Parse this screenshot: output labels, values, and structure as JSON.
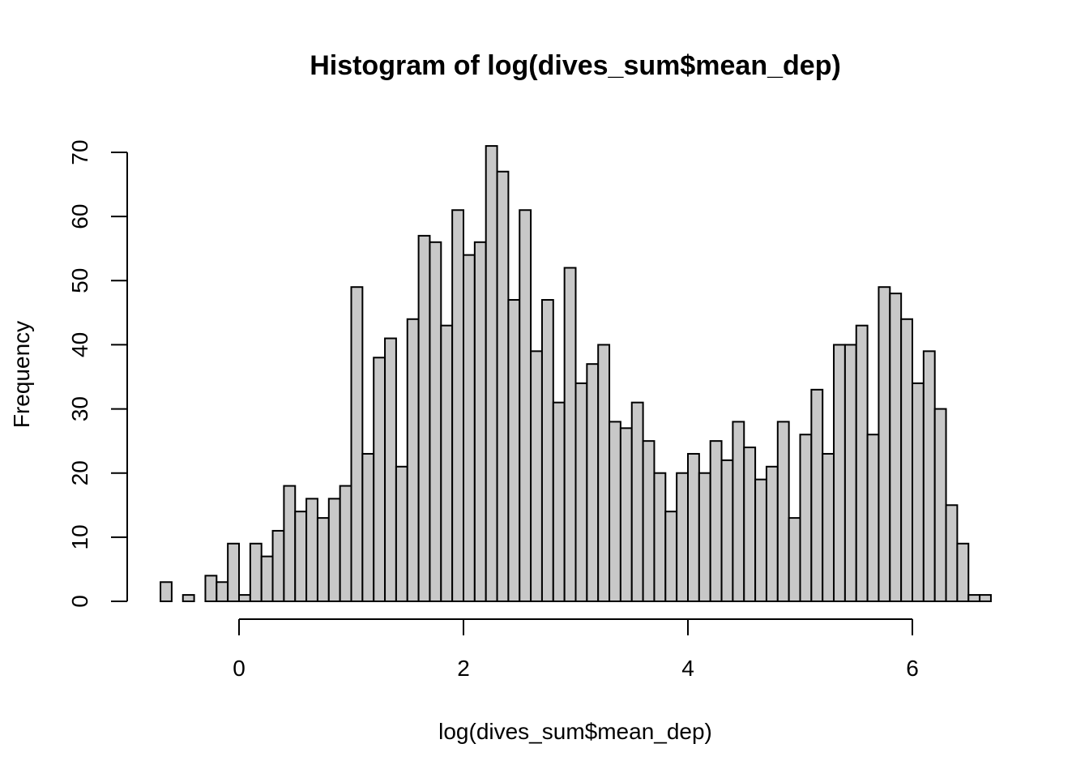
{
  "chart_data": {
    "type": "bar",
    "title": "Histogram of log(dives_sum$mean_dep)",
    "xlabel": "log(dives_sum$mean_dep)",
    "ylabel": "Frequency",
    "bar_color": "#c8c8c8",
    "edge_color": "#000000",
    "bin_start": -0.7,
    "bin_width": 0.1,
    "values": [
      3,
      0,
      1,
      0,
      4,
      3,
      9,
      1,
      9,
      7,
      11,
      18,
      14,
      16,
      13,
      16,
      18,
      49,
      23,
      38,
      41,
      21,
      44,
      57,
      56,
      43,
      61,
      54,
      56,
      71,
      67,
      47,
      61,
      39,
      47,
      31,
      52,
      34,
      37,
      40,
      28,
      27,
      31,
      25,
      20,
      14,
      20,
      23,
      20,
      25,
      22,
      28,
      24,
      19,
      21,
      28,
      13,
      26,
      33,
      23,
      40,
      40,
      43,
      26,
      49,
      48,
      44,
      34,
      39,
      30,
      15,
      9,
      1,
      1
    ],
    "xticks": [
      0,
      2,
      4,
      6
    ],
    "yticks": [
      0,
      10,
      20,
      30,
      40,
      50,
      60,
      70
    ],
    "xlim": [
      -0.7,
      6.7
    ],
    "ylim": [
      0,
      70
    ]
  }
}
